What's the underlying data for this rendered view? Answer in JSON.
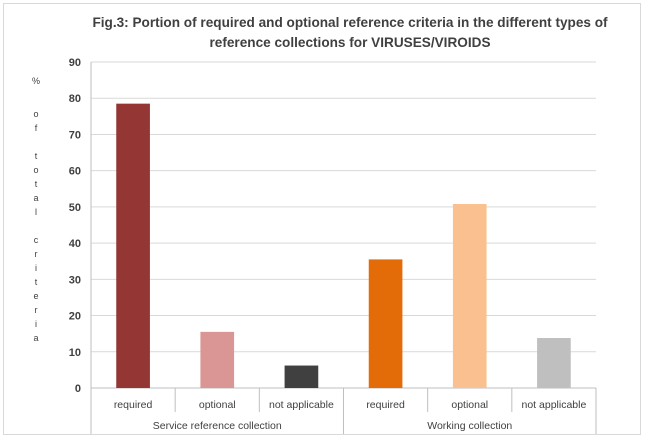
{
  "chart_data": {
    "type": "bar",
    "title": "Fig.3: Portion of required and optional reference criteria in the different types of reference collections for VIRUSES/VIROIDS",
    "title_lines": [
      "Fig.3: Portion of required and optional reference criteria in the different types of",
      "reference collections for VIRUSES/VIROIDS"
    ],
    "ylabel": "% of total criteria",
    "ylabel_glyphs": [
      "%",
      "o",
      "f",
      "t",
      "o",
      "t",
      "a",
      "l",
      "c",
      "r",
      "i",
      "t",
      "e",
      "r",
      "i",
      "a"
    ],
    "ylim": [
      0,
      90
    ],
    "yticks": [
      0,
      10,
      20,
      30,
      40,
      50,
      60,
      70,
      80,
      90
    ],
    "grid": true,
    "groups": [
      {
        "label": "Service reference collection",
        "categories": [
          "required",
          "optional",
          "not applicable"
        ],
        "values": [
          78.5,
          15.5,
          6.2
        ],
        "colors": [
          "#943634",
          "#d99694",
          "#404040"
        ]
      },
      {
        "label": "Working collection",
        "categories": [
          "required",
          "optional",
          "not applicable"
        ],
        "values": [
          35.5,
          50.8,
          13.8
        ],
        "colors": [
          "#e36c09",
          "#fac090",
          "#bfbfbf"
        ]
      }
    ]
  }
}
